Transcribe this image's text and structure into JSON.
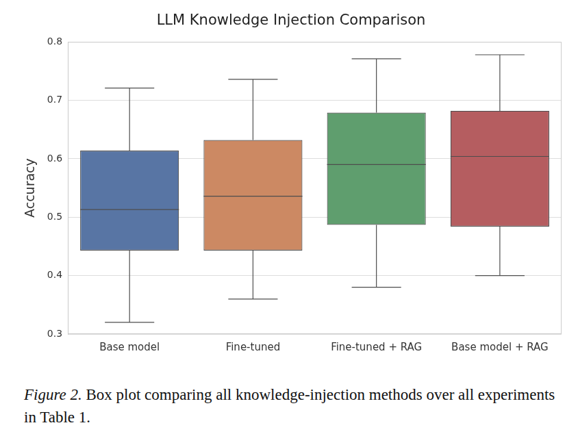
{
  "chart_data": {
    "type": "box",
    "title": "LLM Knowledge Injection Comparison",
    "y_label": "Accuracy",
    "categories": [
      "Base model",
      "Fine-tuned",
      "Fine-tuned + RAG",
      "Base model + RAG"
    ],
    "boxes": [
      {
        "min": 0.32,
        "q1": 0.443,
        "median": 0.513,
        "q3": 0.614,
        "max": 0.721
      },
      {
        "min": 0.36,
        "q1": 0.443,
        "median": 0.536,
        "q3": 0.632,
        "max": 0.736
      },
      {
        "min": 0.38,
        "q1": 0.487,
        "median": 0.59,
        "q3": 0.679,
        "max": 0.771
      },
      {
        "min": 0.4,
        "q1": 0.484,
        "median": 0.604,
        "q3": 0.682,
        "max": 0.778
      }
    ],
    "colors": [
      "#5875a4",
      "#cc8963",
      "#5f9e6e",
      "#b55d60"
    ],
    "ylim": [
      0.3,
      0.8
    ],
    "yticks": [
      0.3,
      0.4,
      0.5,
      0.6,
      0.7,
      0.8
    ],
    "grid": true
  },
  "caption": {
    "label": "Figure 2.",
    "text": "Box plot comparing all knowledge-injection methods over all experiments in Table 1."
  }
}
